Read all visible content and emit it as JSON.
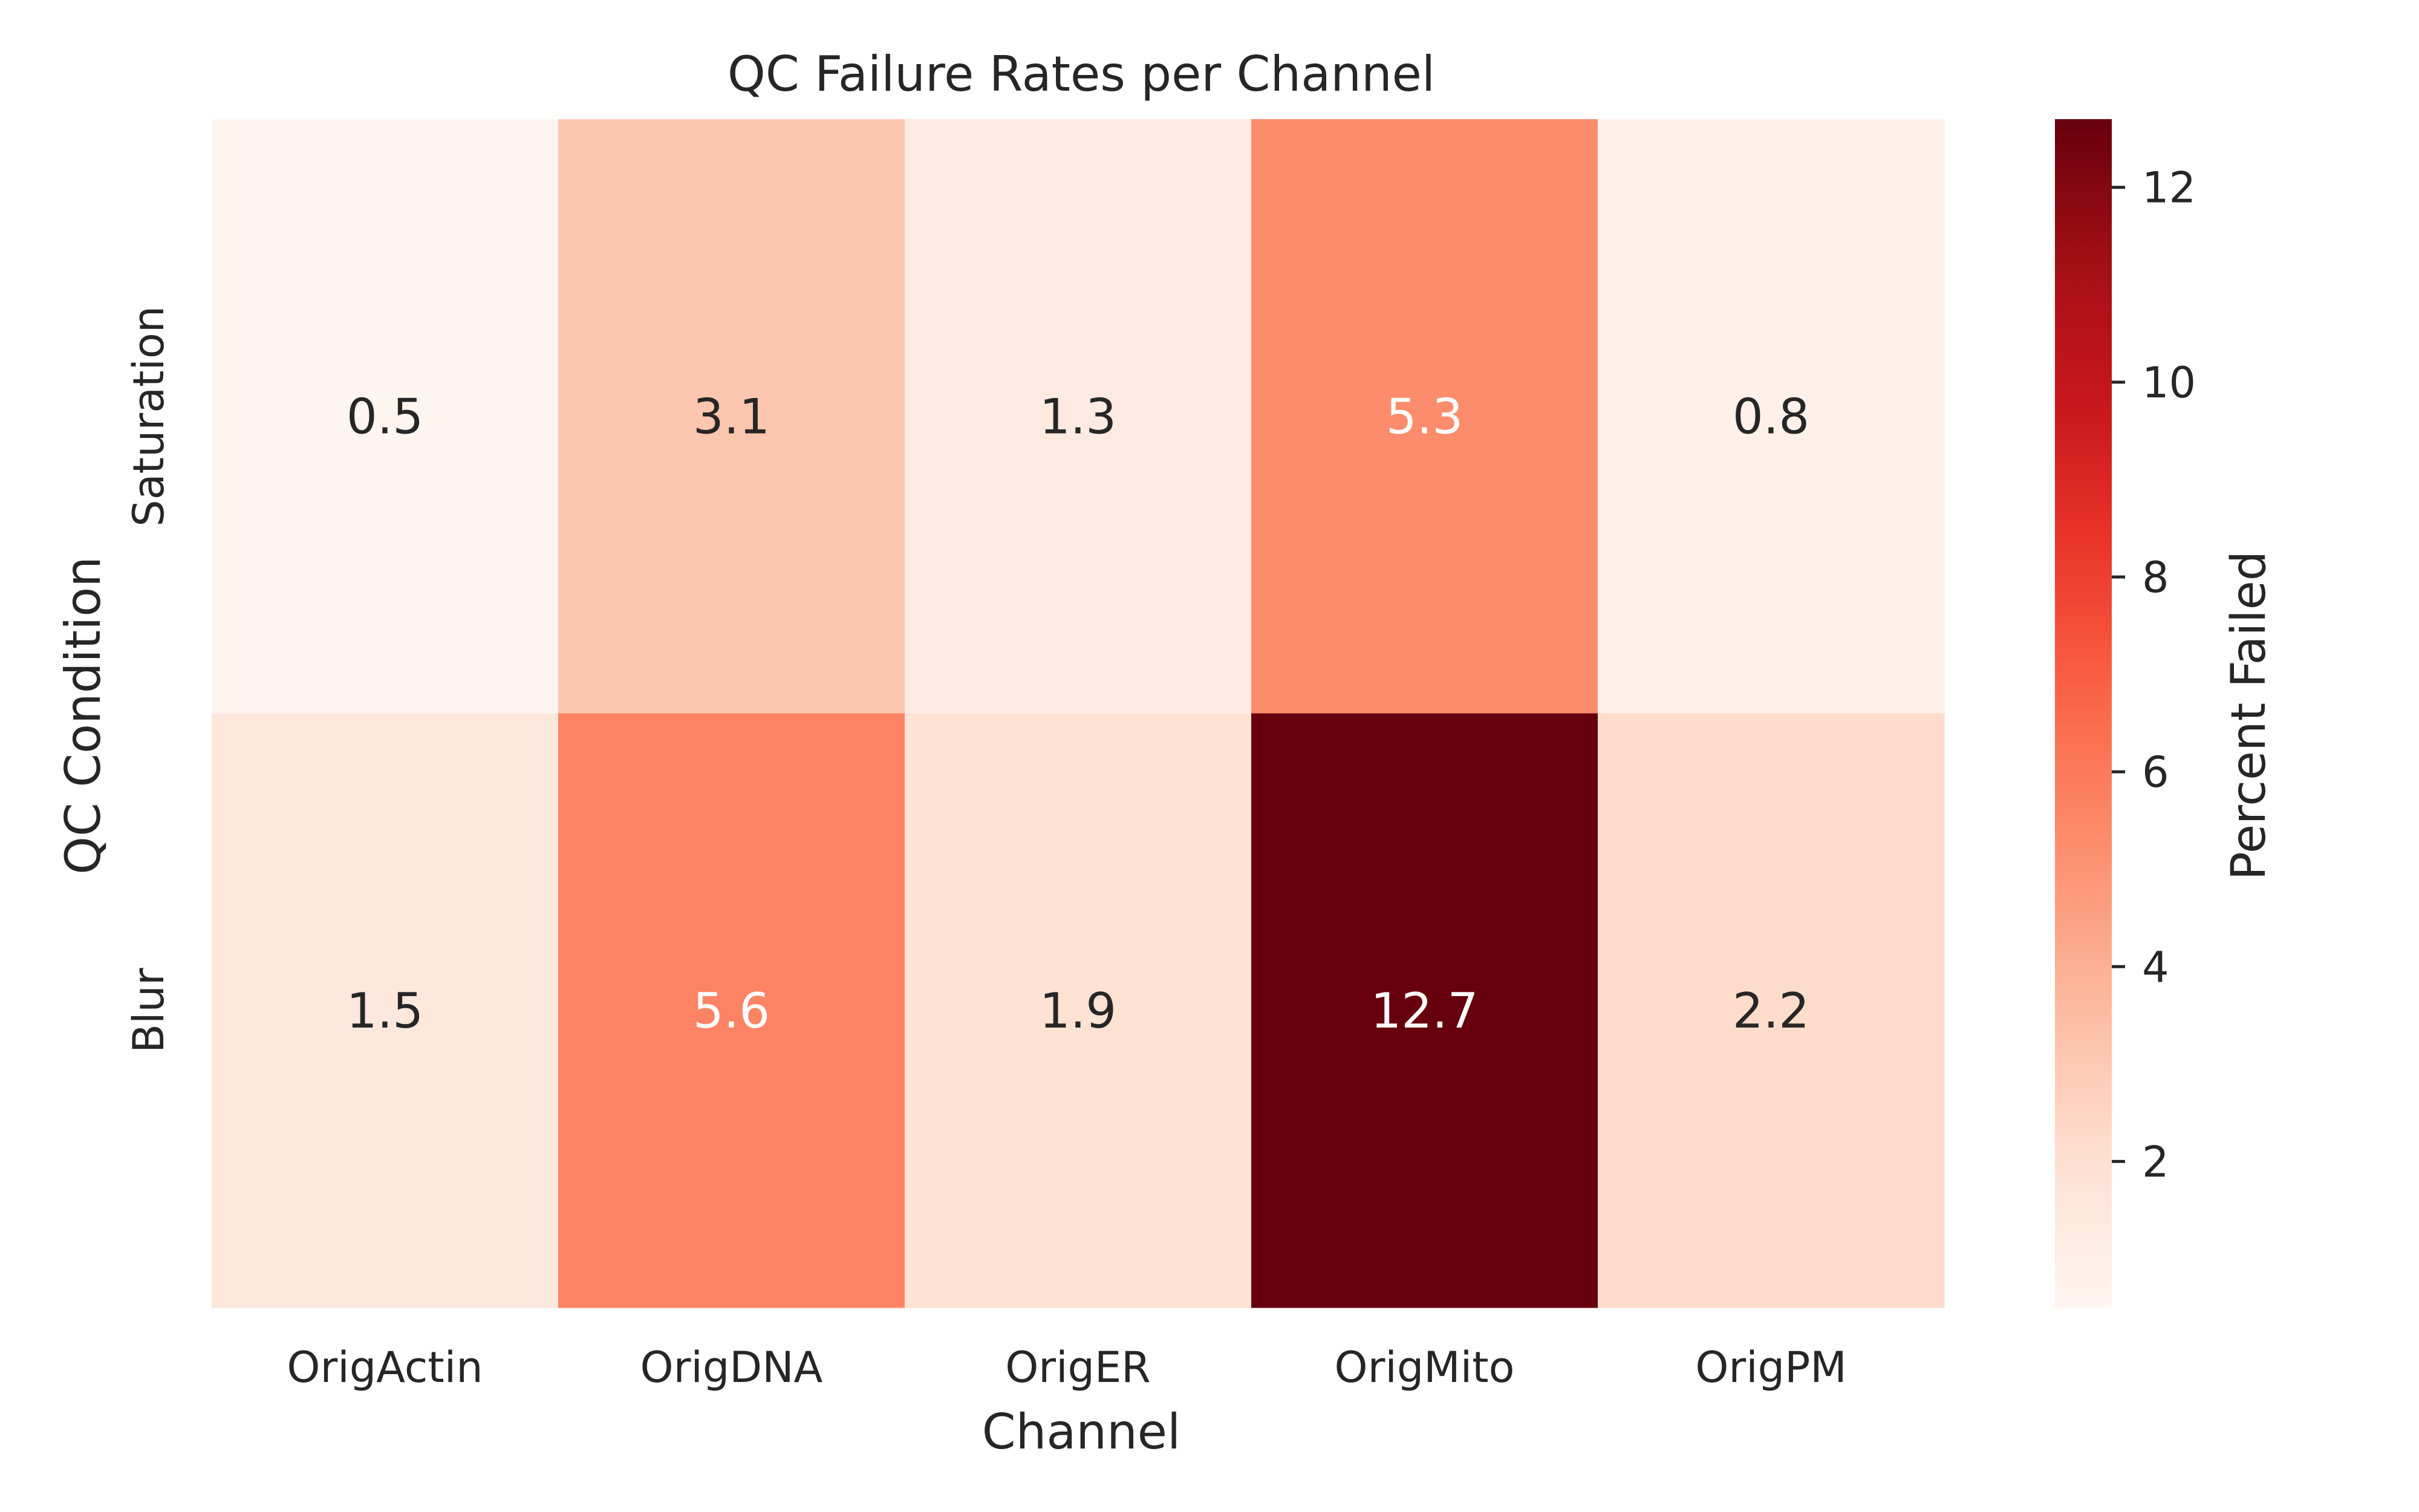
{
  "chart_data": {
    "type": "heatmap",
    "title": "QC Failure Rates per Channel",
    "xlabel": "Channel",
    "ylabel": "QC Condition",
    "x_categories": [
      "OrigActin",
      "OrigDNA",
      "OrigER",
      "OrigMito",
      "OrigPM"
    ],
    "y_categories": [
      "Saturation",
      "Blur"
    ],
    "values": [
      [
        0.5,
        3.1,
        1.3,
        5.3,
        0.8
      ],
      [
        1.5,
        5.6,
        1.9,
        12.7,
        2.2
      ]
    ],
    "value_labels": [
      [
        "0.5",
        "3.1",
        "1.3",
        "5.3",
        "0.8"
      ],
      [
        "1.5",
        "5.6",
        "1.9",
        "12.7",
        "2.2"
      ]
    ],
    "colorbar": {
      "label": "Percent Failed",
      "ticks": [
        2,
        4,
        6,
        8,
        10,
        12
      ],
      "range": [
        0.5,
        12.7
      ],
      "colormap": "Reds"
    },
    "grid": false
  }
}
